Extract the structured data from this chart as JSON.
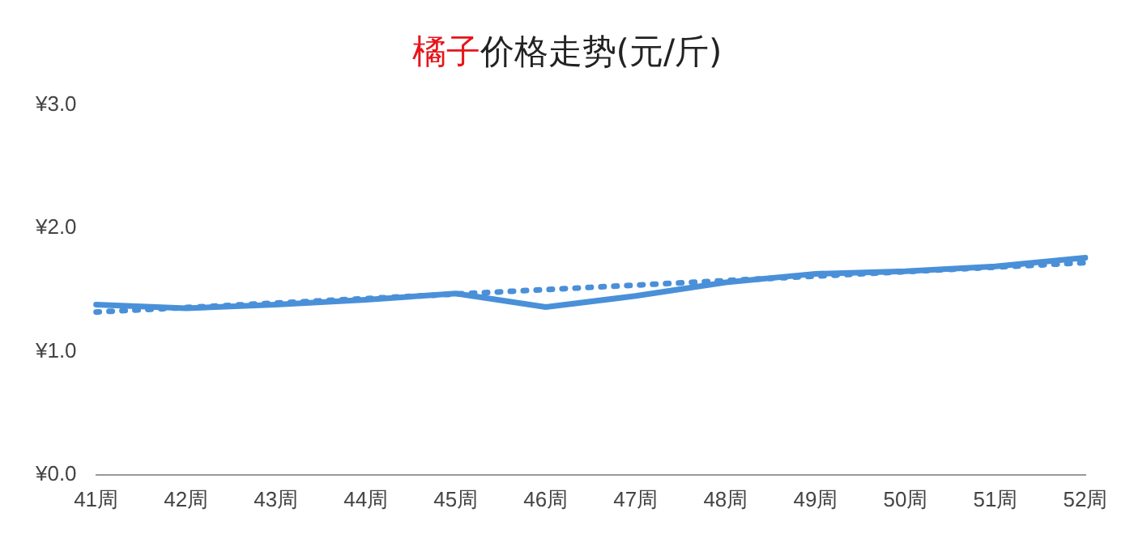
{
  "chart_data": {
    "type": "line",
    "title": "橘子价格走势(元/斤)",
    "categories": [
      "41周",
      "42周",
      "43周",
      "44周",
      "45周",
      "46周",
      "47周",
      "48周",
      "49周",
      "50周",
      "51周",
      "52周"
    ],
    "series": [
      {
        "color": "#4a90d9",
        "values": [
          1.38,
          1.35,
          1.38,
          1.42,
          1.47,
          1.36,
          1.45,
          1.56,
          1.63,
          1.65,
          1.69,
          1.76
        ],
        "line_style": "solid"
      },
      {
        "type": "line",
        "color": "#4a90d9",
        "x": [
          "41周",
          "52周"
        ],
        "values": [
          1.32,
          1.72
        ],
        "line_style": "dotted"
      }
    ],
    "ylim": [
      0,
      3
    ],
    "yticks": [
      {
        "value": 0,
        "label": "¥0.0"
      },
      {
        "value": 1,
        "label": "¥1.0"
      },
      {
        "value": 2,
        "label": "¥2.0"
      },
      {
        "value": 3,
        "label": "¥3.0"
      }
    ],
    "grid": false,
    "legend": false,
    "marker": "none"
  }
}
